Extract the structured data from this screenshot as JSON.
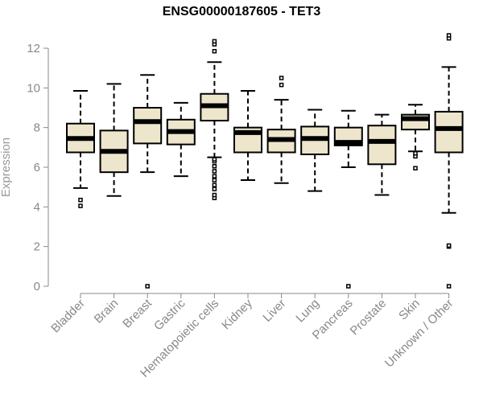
{
  "chart_data": {
    "type": "box",
    "title": "ENSG00000187605 - TET3",
    "ylabel": "Expression",
    "xlabel": "",
    "ylim": [
      0,
      12.6
    ],
    "yticks": [
      0,
      2,
      4,
      6,
      8,
      10,
      12
    ],
    "grid": false,
    "box_color": "#ede6cc",
    "line_color": "#000000",
    "categories": [
      "Bladder",
      "Brain",
      "Breast",
      "Gastric",
      "Hematopoietic cells",
      "Kidney",
      "Liver",
      "Lung",
      "Pancreas",
      "Prostate",
      "Skin",
      "Unknown / Other"
    ],
    "boxes": [
      {
        "name": "Bladder",
        "whisker_low": 4.95,
        "q1": 6.75,
        "median": 7.45,
        "q3": 8.2,
        "whisker_high": 9.85,
        "outliers": [
          4.05,
          4.35
        ]
      },
      {
        "name": "Brain",
        "whisker_low": 4.55,
        "q1": 5.75,
        "median": 6.8,
        "q3": 7.85,
        "whisker_high": 10.2,
        "outliers": []
      },
      {
        "name": "Breast",
        "whisker_low": 5.75,
        "q1": 7.2,
        "median": 8.3,
        "q3": 9.0,
        "whisker_high": 10.65,
        "outliers": [
          0.0
        ]
      },
      {
        "name": "Gastric",
        "whisker_low": 5.55,
        "q1": 7.15,
        "median": 7.8,
        "q3": 8.4,
        "whisker_high": 9.25,
        "outliers": []
      },
      {
        "name": "Hematopoietic cells",
        "whisker_low": 6.5,
        "q1": 8.35,
        "median": 9.1,
        "q3": 9.7,
        "whisker_high": 11.3,
        "outliers": [
          4.45,
          4.6,
          4.9,
          5.1,
          5.35,
          5.55,
          5.8,
          6.05,
          6.3,
          6.4,
          11.85,
          12.2,
          12.35
        ]
      },
      {
        "name": "Kidney",
        "whisker_low": 5.35,
        "q1": 6.75,
        "median": 7.75,
        "q3": 8.0,
        "whisker_high": 9.85,
        "outliers": []
      },
      {
        "name": "Liver",
        "whisker_low": 5.2,
        "q1": 6.75,
        "median": 7.4,
        "q3": 7.9,
        "whisker_high": 9.4,
        "outliers": [
          10.15,
          10.5
        ]
      },
      {
        "name": "Lung",
        "whisker_low": 4.8,
        "q1": 6.65,
        "median": 7.45,
        "q3": 8.05,
        "whisker_high": 8.9,
        "outliers": []
      },
      {
        "name": "Pancreas",
        "whisker_low": 6.0,
        "q1": 7.1,
        "median": 7.25,
        "q3": 8.0,
        "whisker_high": 8.85,
        "outliers": [
          0.0
        ]
      },
      {
        "name": "Prostate",
        "whisker_low": 4.6,
        "q1": 6.15,
        "median": 7.3,
        "q3": 8.1,
        "whisker_high": 8.65,
        "outliers": []
      },
      {
        "name": "Skin",
        "whisker_low": 6.8,
        "q1": 7.9,
        "median": 8.45,
        "q3": 8.65,
        "whisker_high": 9.15,
        "outliers": [
          5.95,
          6.55,
          6.7
        ]
      },
      {
        "name": "Unknown / Other",
        "whisker_low": 3.7,
        "q1": 6.75,
        "median": 7.95,
        "q3": 8.8,
        "whisker_high": 11.05,
        "outliers": [
          0.0,
          2.0,
          2.05,
          12.5,
          12.65
        ]
      }
    ]
  }
}
